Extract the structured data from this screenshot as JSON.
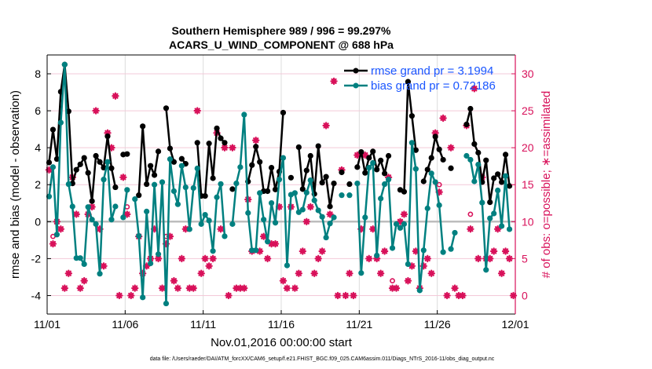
{
  "chart_data": {
    "type": "line",
    "title": [
      "Southern Hemisphere 989 / 996 = 99.297%",
      "ACARS_U_WIND_COMPONENT @ 688 hPa"
    ],
    "xlabel": "Nov.01,2016 00:00:00 start",
    "ylabel": "rmse and bias (model - observation)",
    "y2label": "# of obs: o=possible; ∗=assimilated",
    "footer": "data file: /Users/raeder/DAI/ATM_forcXX/CAM6_setup/f.e21.FHIST_BGC.f09_025.CAM6assim.011/Diags_NTrS_2016-11/obs_diag_output.nc",
    "x_tick_labels": [
      "11/01",
      "11/06",
      "11/11",
      "11/16",
      "11/21",
      "11/26",
      "12/01"
    ],
    "x_tick_days": [
      0,
      5,
      10,
      15,
      20,
      25,
      30
    ],
    "xlim_days": [
      0,
      30
    ],
    "bin_hours": 6,
    "first_bin_center_hours": 3,
    "ylim": [
      -5,
      9.02
    ],
    "y_ticks": [
      -4,
      -2,
      0,
      2,
      4,
      6,
      8
    ],
    "y_tick_labels": [
      "-4",
      "-2",
      "0",
      "2",
      "4",
      "6",
      "8"
    ],
    "y2lim": [
      -2.5,
      32.55
    ],
    "y2_ticks": [
      0,
      5,
      10,
      15,
      20,
      25,
      30
    ],
    "y2_tick_labels": [
      "0",
      "5",
      "10",
      "15",
      "20",
      "25",
      "30"
    ],
    "grid": true,
    "legend_placement": "top-right",
    "colors": {
      "rmse": "#000000",
      "bias": "#008080",
      "obs": "#d8115a",
      "legend_text": "#1a56ff",
      "zero_line": "#bdbdbd"
    },
    "series": [
      {
        "name": "rmse grand pr = 3.1994",
        "axis": "left",
        "values": [
          3.2,
          4.98,
          3.39,
          7.03,
          8.5,
          5.97,
          2.07,
          2.81,
          3.1,
          3.45,
          2.64,
          1.11,
          3.56,
          3.23,
          2.92,
          4.62,
          2.89,
          1.86,
          null,
          3.63,
          3.66,
          null,
          null,
          1.43,
          5.16,
          2.03,
          3.02,
          2.52,
          3.8,
          null,
          6.14,
          3.96,
          3.23,
          null,
          3.4,
          3.13,
          null,
          null,
          4.27,
          1.39,
          1.39,
          4.23,
          2.35,
          5.05,
          4.51,
          4.27,
          null,
          1.76,
          null,
          null,
          null,
          2.17,
          3.06,
          4.06,
          3.23,
          1.65,
          1.65,
          2.92,
          1.74,
          2.71,
          5.9,
          null,
          2.38,
          null,
          4.03,
          1.76,
          2.77,
          3.56,
          1.5,
          4.09,
          2.11,
          2.43,
          0.82,
          2.07,
          null,
          2.67,
          null,
          2.03,
          null,
          2.95,
          3.77,
          2.64,
          3.45,
          3.8,
          2.82,
          3.31,
          2.61,
          3.56,
          null,
          null,
          1.72,
          1.62,
          7.57,
          5.72,
          3.87,
          null,
          2.18,
          2.82,
          3.45,
          4.6,
          3.91,
          3.35,
          null,
          2.89,
          null,
          null,
          null,
          5.26,
          6.11,
          4.2,
          3.73,
          2.14,
          3.32,
          1.05,
          2.35,
          2.57,
          2.14,
          3.63,
          1.93
        ]
      },
      {
        "name": "bias grand pr = 0.72186",
        "axis": "left",
        "values": [
          1.36,
          2.95,
          -0.7,
          5.36,
          8.5,
          2.03,
          0.82,
          -1.97,
          -1.97,
          -2.3,
          0.79,
          0.11,
          -0.13,
          -2.82,
          2.28,
          3.23,
          0.11,
          0.82,
          null,
          0.23,
          1.72,
          null,
          1.22,
          -0.77,
          -4.1,
          0.55,
          -2.26,
          2.0,
          -1.76,
          2.14,
          -4.43,
          3.38,
          1.65,
          0.94,
          3.02,
          1.86,
          -0.41,
          1.82,
          2.88,
          -0.13,
          0.37,
          0.06,
          -1.59,
          1.32,
          2.04,
          -0.79,
          null,
          -0.13,
          2.07,
          2.95,
          5.79,
          0.47,
          -1.55,
          -1.55,
          1.55,
          0.11,
          -1.08,
          1.01,
          -0.06,
          2.28,
          3.45,
          -2.37,
          1.46,
          1.55,
          0.51,
          0.65,
          1.57,
          2.24,
          1.15,
          0.61,
          0.26,
          -0.86,
          -0.1,
          0.23,
          null,
          1.43,
          null,
          1.43,
          null,
          2.07,
          -2.78,
          0.23,
          2.92,
          3.18,
          -1.83,
          1.25,
          2.03,
          2.28,
          -1.43,
          -0.13,
          -0.34,
          -0.13,
          -2.3,
          4.27,
          2.85,
          -3.72,
          -1.55,
          0.72,
          2.61,
          2.14,
          0.89,
          -1.65,
          null,
          -1.48,
          -0.6,
          null,
          null,
          3.56,
          3.35,
          2.18,
          3.09,
          1.03,
          -2.61,
          0.18,
          0.44,
          1.69,
          -0.24,
          2.47,
          -0.41
        ]
      },
      {
        "name": "assimilated",
        "axis": "right",
        "marker": "asterisk",
        "values": [
          17,
          7,
          10,
          9,
          1,
          3,
          16,
          11,
          1,
          2,
          11,
          12,
          25,
          9,
          4,
          22,
          20,
          27,
          0,
          16,
          11,
          0,
          1,
          8,
          3,
          4,
          5,
          9,
          5,
          1,
          7,
          8,
          2,
          1,
          5,
          9,
          1,
          1,
          25,
          3,
          5,
          4,
          5,
          22,
          9,
          20,
          0,
          20,
          1,
          1,
          1,
          13,
          6,
          21,
          6,
          8,
          5,
          7,
          7,
          12,
          2,
          1,
          12,
          1,
          3,
          6,
          10,
          12,
          3,
          5,
          6,
          23,
          11,
          29,
          0,
          17,
          0,
          3,
          0,
          19,
          9,
          19,
          5,
          9,
          5,
          3,
          6,
          16,
          1,
          1,
          10,
          11,
          2,
          4,
          6,
          1,
          4,
          5,
          3,
          22,
          14,
          24,
          0,
          20,
          1,
          0,
          0,
          23,
          9,
          28,
          5,
          16,
          5,
          5,
          6,
          9,
          3,
          6,
          5,
          0
        ]
      },
      {
        "name": "possible",
        "axis": "right",
        "marker": "circle",
        "points": [
          [
            1,
            8
          ],
          [
            20,
            12
          ],
          [
            30,
            8
          ],
          [
            88,
            2
          ],
          [
            100,
            15
          ],
          [
            108,
            11
          ]
        ]
      }
    ]
  }
}
